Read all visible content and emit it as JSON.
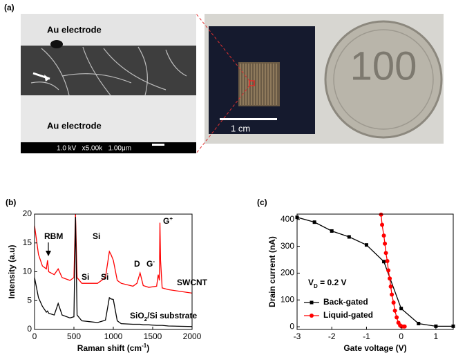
{
  "panel_a": {
    "label": "(a)",
    "sem": {
      "top_label": "Au electrode",
      "bottom_label": "Au electrode",
      "info": "1.0 kV   x5.00k   1.00μm"
    },
    "chip": {
      "scale_label": "1 cm"
    },
    "coin": {
      "label": "100"
    }
  },
  "chart_data": [
    {
      "type": "line",
      "panel_label": "(b)",
      "x_label": {
        "text": "Raman shift (cm",
        "sup": "-1",
        "suffix": ")"
      },
      "y_label": "Intensity (a.u)",
      "xlim": [
        0,
        2000
      ],
      "ylim": [
        0,
        20
      ],
      "xticks": [
        0,
        500,
        1000,
        1500,
        2000
      ],
      "yticks": [
        0,
        5,
        10,
        15,
        20
      ],
      "x": [
        0,
        50,
        100,
        150,
        165,
        180,
        250,
        300,
        350,
        450,
        500,
        520,
        540,
        600,
        800,
        900,
        950,
        970,
        1000,
        1050,
        1100,
        1250,
        1300,
        1340,
        1380,
        1450,
        1550,
        1570,
        1585,
        1592,
        1600,
        1620,
        1700,
        2000
      ],
      "series": [
        {
          "name": "SWCNT",
          "color": "#ff0000",
          "values": [
            18,
            13,
            11,
            10.5,
            12,
            10,
            9.5,
            10.5,
            9,
            8.5,
            9,
            20,
            9,
            8,
            8,
            9,
            13.5,
            13,
            12,
            8.5,
            8,
            7.5,
            8,
            9.8,
            7.6,
            7.3,
            7.5,
            9.5,
            8.5,
            18.5,
            12,
            7.2,
            6.9,
            6.3
          ]
        },
        {
          "name": "SiO2/Si substrate",
          "color": "#000000",
          "values": [
            9,
            5.5,
            4,
            3,
            3.2,
            2.8,
            2.5,
            4.5,
            2.5,
            2,
            2.2,
            19.5,
            2.5,
            1.5,
            1.2,
            1.6,
            5.5,
            5.3,
            5.2,
            1.5,
            1,
            0.9,
            0.9,
            0.9,
            0.8,
            0.8,
            0.7,
            0.7,
            0.7,
            0.7,
            0.7,
            0.7,
            0.6,
            0.5
          ]
        }
      ],
      "annotations": [
        {
          "text": "RBM"
        },
        {
          "text": "Si"
        },
        {
          "text": "Si"
        },
        {
          "text": "Si"
        },
        {
          "text": "D"
        },
        {
          "text": "G",
          "sup": "-"
        },
        {
          "text": "G",
          "sup": "+"
        },
        {
          "text": "SWCNT"
        },
        {
          "text": "SiO",
          "sub": "2",
          "suffix": "/Si substrate"
        }
      ]
    },
    {
      "type": "line",
      "panel_label": "(c)",
      "x_label": {
        "text": "Gate voltage (V)"
      },
      "y_label": "Drain current (nA)",
      "xlim": [
        -3,
        1.5
      ],
      "ylim": [
        -10,
        420
      ],
      "xticks": [
        -3,
        -2,
        -1,
        0,
        1
      ],
      "yticks": [
        0,
        100,
        200,
        300,
        400
      ],
      "legend": "lower left",
      "series": [
        {
          "name": "Back-gated",
          "color": "#000000",
          "marker": "square",
          "x": [
            -3,
            -2.5,
            -2,
            -1.5,
            -1,
            -0.5,
            0,
            0.5,
            1,
            1.5
          ],
          "values": [
            408,
            390,
            357,
            335,
            305,
            243,
            68,
            12,
            2,
            2
          ]
        },
        {
          "name": "Liquid-gated",
          "color": "#ff0000",
          "marker": "circle",
          "x": [
            -0.58,
            -0.55,
            -0.5,
            -0.47,
            -0.44,
            -0.4,
            -0.37,
            -0.33,
            -0.3,
            -0.27,
            -0.22,
            -0.18,
            -0.13,
            -0.08,
            -0.03,
            0,
            0.05,
            0.1
          ],
          "values": [
            418,
            380,
            340,
            310,
            275,
            245,
            210,
            180,
            150,
            120,
            90,
            60,
            35,
            15,
            5,
            2,
            1,
            1
          ]
        }
      ],
      "annotations": [
        {
          "text": "V",
          "sub": "D",
          "suffix": " = 0.2 V"
        }
      ]
    }
  ]
}
